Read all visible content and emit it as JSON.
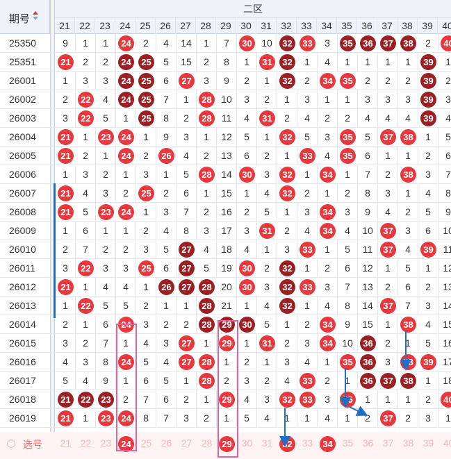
{
  "header": {
    "period_label": "期号",
    "zone_label": "二区"
  },
  "columns": [
    21,
    22,
    23,
    24,
    25,
    26,
    27,
    28,
    29,
    30,
    31,
    32,
    33,
    34,
    35,
    36,
    37,
    38,
    39,
    40
  ],
  "selector": {
    "label": "选号"
  },
  "colors": {
    "red": "#e8383d",
    "dark": "#9b1f23",
    "mark": "#e0649a",
    "arrow": "#1f6fc4"
  },
  "rows": [
    {
      "period": "25350",
      "cells": [
        "9",
        "1",
        "1",
        "24",
        "2",
        "4",
        "14",
        "1",
        "7",
        "30",
        "10",
        "32",
        "33",
        "3",
        "35",
        "36",
        "37",
        "38",
        "2",
        "40"
      ],
      "dark": [
        11,
        14,
        15,
        16,
        17
      ]
    },
    {
      "period": "25351",
      "cells": [
        "21",
        "2",
        "2",
        "24",
        "25",
        "5",
        "15",
        "2",
        "8",
        "1",
        "31",
        "32",
        "1",
        "4",
        "1",
        "1",
        "1",
        "1",
        "39",
        "1"
      ],
      "dark": [
        3,
        4,
        11,
        18
      ]
    },
    {
      "period": "26001",
      "cells": [
        "1",
        "3",
        "3",
        "24",
        "25",
        "6",
        "27",
        "3",
        "9",
        "2",
        "1",
        "32",
        "2",
        "34",
        "35",
        "2",
        "2",
        "2",
        "39",
        "2"
      ],
      "dark": [
        3,
        4,
        11,
        18
      ]
    },
    {
      "period": "26002",
      "cells": [
        "2",
        "22",
        "4",
        "24",
        "25",
        "7",
        "1",
        "28",
        "10",
        "3",
        "2",
        "1",
        "3",
        "1",
        "1",
        "3",
        "3",
        "3",
        "39",
        "3"
      ],
      "dark": [
        3,
        4,
        18
      ]
    },
    {
      "period": "26003",
      "cells": [
        "3",
        "22",
        "5",
        "1",
        "25",
        "8",
        "2",
        "28",
        "11",
        "4",
        "31",
        "2",
        "4",
        "2",
        "2",
        "4",
        "4",
        "4",
        "39",
        "4"
      ],
      "dark": [
        4,
        18
      ]
    },
    {
      "period": "26004",
      "cells": [
        "21",
        "1",
        "23",
        "24",
        "1",
        "9",
        "3",
        "1",
        "12",
        "5",
        "1",
        "32",
        "5",
        "3",
        "35",
        "5",
        "37",
        "38",
        "1",
        "5"
      ],
      "dark": []
    },
    {
      "period": "26005",
      "cells": [
        "21",
        "2",
        "1",
        "24",
        "2",
        "26",
        "4",
        "2",
        "13",
        "6",
        "2",
        "1",
        "33",
        "4",
        "35",
        "6",
        "1",
        "1",
        "2",
        "6"
      ],
      "dark": []
    },
    {
      "period": "26006",
      "cells": [
        "1",
        "3",
        "2",
        "1",
        "3",
        "1",
        "5",
        "28",
        "14",
        "30",
        "3",
        "32",
        "1",
        "34",
        "1",
        "7",
        "2",
        "38",
        "3",
        "7"
      ],
      "dark": []
    },
    {
      "period": "26007",
      "cells": [
        "21",
        "4",
        "3",
        "2",
        "25",
        "2",
        "6",
        "1",
        "15",
        "1",
        "4",
        "32",
        "2",
        "1",
        "2",
        "8",
        "3",
        "1",
        "4",
        "8"
      ],
      "dark": []
    },
    {
      "period": "26008",
      "cells": [
        "21",
        "5",
        "23",
        "24",
        "1",
        "3",
        "7",
        "2",
        "16",
        "2",
        "5",
        "1",
        "3",
        "34",
        "3",
        "9",
        "4",
        "2",
        "5",
        "9"
      ],
      "dark": []
    },
    {
      "period": "26009",
      "cells": [
        "1",
        "6",
        "1",
        "1",
        "2",
        "4",
        "8",
        "3",
        "17",
        "3",
        "31",
        "2",
        "4",
        "34",
        "4",
        "10",
        "37",
        "3",
        "6",
        "10"
      ],
      "dark": []
    },
    {
      "period": "26010",
      "cells": [
        "2",
        "7",
        "2",
        "2",
        "3",
        "5",
        "27",
        "4",
        "18",
        "4",
        "1",
        "3",
        "33",
        "1",
        "5",
        "11",
        "37",
        "4",
        "39",
        "11"
      ],
      "dark": [
        6
      ]
    },
    {
      "period": "26011",
      "cells": [
        "3",
        "22",
        "3",
        "3",
        "25",
        "6",
        "27",
        "5",
        "19",
        "30",
        "2",
        "32",
        "1",
        "2",
        "6",
        "12",
        "1",
        "5",
        "1",
        "12"
      ],
      "dark": [
        6,
        11
      ]
    },
    {
      "period": "26012",
      "cells": [
        "21",
        "1",
        "4",
        "4",
        "1",
        "26",
        "27",
        "28",
        "20",
        "30",
        "3",
        "32",
        "33",
        "3",
        "7",
        "13",
        "2",
        "6",
        "2",
        "13"
      ],
      "dark": [
        5,
        6,
        7,
        11
      ]
    },
    {
      "period": "26013",
      "cells": [
        "1",
        "22",
        "5",
        "5",
        "2",
        "1",
        "1",
        "28",
        "21",
        "1",
        "4",
        "32",
        "1",
        "4",
        "8",
        "14",
        "37",
        "7",
        "3",
        "14"
      ],
      "dark": [
        7,
        11
      ]
    },
    {
      "period": "26014",
      "cells": [
        "2",
        "1",
        "6",
        "24",
        "3",
        "2",
        "2",
        "28",
        "29",
        "30",
        "5",
        "1",
        "2",
        "34",
        "9",
        "15",
        "1",
        "38",
        "4",
        "15"
      ],
      "dark": [
        7,
        8,
        9
      ]
    },
    {
      "period": "26015",
      "cells": [
        "3",
        "2",
        "7",
        "1",
        "4",
        "3",
        "27",
        "1",
        "29",
        "1",
        "31",
        "2",
        "3",
        "34",
        "10",
        "36",
        "2",
        "1",
        "5",
        "16"
      ],
      "dark": [
        15
      ]
    },
    {
      "period": "26016",
      "cells": [
        "4",
        "3",
        "8",
        "24",
        "5",
        "4",
        "27",
        "28",
        "1",
        "2",
        "1",
        "3",
        "4",
        "1",
        "35",
        "36",
        "3",
        "38",
        "39",
        "17"
      ],
      "dark": [
        15
      ]
    },
    {
      "period": "26017",
      "cells": [
        "5",
        "4",
        "9",
        "1",
        "6",
        "5",
        "1",
        "28",
        "2",
        "3",
        "2",
        "4",
        "33",
        "2",
        "1",
        "36",
        "37",
        "38",
        "1",
        "18"
      ],
      "dark": [
        15,
        16,
        17
      ]
    },
    {
      "period": "26018",
      "cells": [
        "21",
        "22",
        "23",
        "2",
        "7",
        "6",
        "2",
        "1",
        "29",
        "4",
        "3",
        "32",
        "33",
        "3",
        "35",
        "1",
        "1",
        "1",
        "2",
        "40"
      ],
      "dark": [
        0,
        1,
        2
      ]
    },
    {
      "period": "26019",
      "cells": [
        "21",
        "1",
        "23",
        "24",
        "8",
        "7",
        "3",
        "2",
        "1",
        "5",
        "4",
        "1",
        "1",
        "4",
        "1",
        "2",
        "37",
        "2",
        "3",
        "1"
      ],
      "dark": []
    }
  ]
}
